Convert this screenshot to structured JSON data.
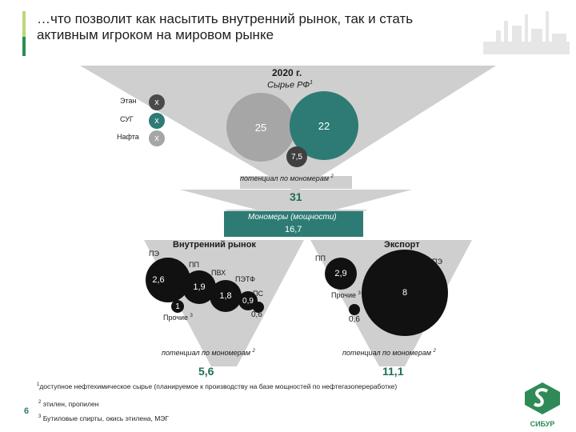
{
  "header": {
    "title_line1": "…что позволит как насытить внутренний рынок, так и стать",
    "title_line2": "активным игроком на мировом рынке"
  },
  "top": {
    "year": "2020 г.",
    "subtitle": "Сырье РФ",
    "subtitle_sup": "1",
    "labels": [
      "Этан",
      "СУГ",
      "Нафта"
    ],
    "x_marks": [
      "x",
      "x",
      "x"
    ],
    "bubble_big": "25",
    "bubble_teal": "22",
    "bubble_small": "7,5",
    "potential_label": "потенциал по мономерам",
    "potential_sup": "2",
    "potential_value": "31"
  },
  "monomers": {
    "label": "Мономеры (мощности)",
    "value": "16,7"
  },
  "domestic": {
    "title": "Внутренний рынок",
    "labels": {
      "pe": "ПЭ",
      "pp": "ПП",
      "pvh": "ПВХ",
      "petf": "ПЭТФ",
      "ps": "ПС",
      "other": "Прочие",
      "other_sup": "3"
    },
    "values": {
      "pe": "2,6",
      "pp": "1,9",
      "pvh": "1,8",
      "petf": "0,9",
      "ps": "0,6",
      "other": "1"
    },
    "potential_label": "потенциал по мономерам",
    "potential_sup": "2",
    "potential_value": "5,6"
  },
  "export": {
    "title": "Экспорт",
    "labels": {
      "pp": "ПП",
      "pe": "ПЭ",
      "other": "Прочие",
      "other_sup": "3"
    },
    "values": {
      "pp": "2,9",
      "pe": "8",
      "other": "0,6"
    },
    "potential_label": "потенциал по мономерам",
    "potential_sup": "2",
    "potential_value": "11,1"
  },
  "footnotes": {
    "f1_sup": "1",
    "f1": "доступное нефтехимическое сырье (планируемое к производству на базе мощностей по нефтегазопереработке)",
    "f2_sup": "2",
    "f2": "этилен, пропилен",
    "f3_sup": "3",
    "f3": "Бутиловые спирты, окись этилена, МЭГ"
  },
  "page_number": "6",
  "logo": {
    "text": "СИБУР"
  },
  "colors": {
    "funnel": "#c8c8c8",
    "grey_bubble": "#a6a6a6",
    "teal": "#2d7b74",
    "dark": "#404040",
    "black": "#111111",
    "accent_green": "#2e8b57",
    "value_green": "#1e6f4f"
  }
}
